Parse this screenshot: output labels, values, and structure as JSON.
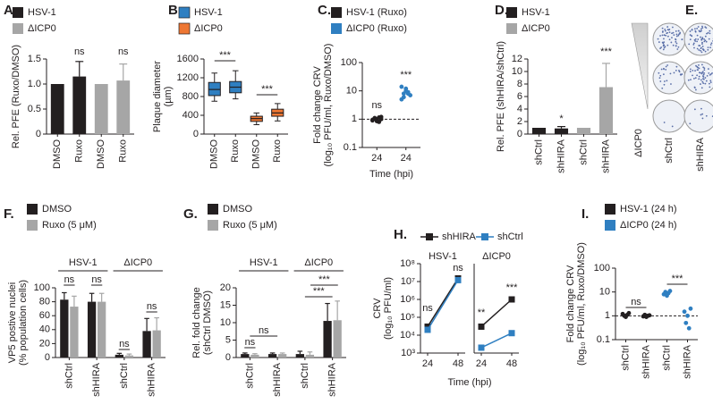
{
  "chart_data": [
    {
      "type": "bar",
      "panel_label": "A.",
      "ylabel": [
        "Rel. PFE (Ruxo/DMSO)"
      ],
      "categories": [
        "DMSO",
        "Ruxo",
        "DMSO",
        "Ruxo"
      ],
      "series": [
        {
          "name": "HSV-1",
          "color": "#231f20",
          "values": [
            1,
            1.15,
            null,
            null
          ],
          "errors": [
            null,
            0.3,
            null,
            null
          ]
        },
        {
          "name": "ΔICP0",
          "color": "#a6a6a6",
          "values": [
            null,
            null,
            1,
            1.07
          ],
          "errors": [
            null,
            null,
            null,
            0.33
          ]
        }
      ],
      "ylim": [
        0,
        1.5
      ],
      "yticks": [
        0,
        0.5,
        {
          "value": 1,
          "label": "1.0"
        },
        1.5
      ],
      "annotations": [
        "ns",
        "ns"
      ]
    },
    {
      "type": "box",
      "panel_label": "B.",
      "ylabel": [
        "Plaque diameter",
        "(µm)"
      ],
      "categories": [
        "DMSO",
        "Ruxo",
        "DMSO",
        "Ruxo"
      ],
      "series": [
        {
          "name": "HSV-1",
          "color": "#2f7fc1",
          "min": [
            700,
            750,
            null,
            null
          ],
          "q1": [
            820,
            880,
            null,
            null
          ],
          "median": [
            950,
            1000,
            null,
            null
          ],
          "q3": [
            1100,
            1120,
            null,
            null
          ],
          "max": [
            1300,
            1350,
            null,
            null
          ]
        },
        {
          "name": "ΔICP0",
          "color": "#ee7733",
          "min": [
            null,
            null,
            200,
            280
          ],
          "q1": [
            null,
            null,
            270,
            380
          ],
          "median": [
            null,
            null,
            330,
            450
          ],
          "q3": [
            null,
            null,
            380,
            530
          ],
          "max": [
            null,
            null,
            450,
            650
          ]
        }
      ],
      "ylim": [
        0,
        1600
      ],
      "yticks": [
        0,
        400,
        800,
        1200,
        1600
      ],
      "annotations": [
        "***",
        "***"
      ]
    },
    {
      "type": "dot",
      "panel_label": "C.",
      "ylabel": [
        "Fold change CRV",
        "(log₁₀ PFU/ml, Ruxo/DMSO)"
      ],
      "xlabel": "Time (hpi)",
      "categories": [
        "24",
        "24"
      ],
      "series": [
        {
          "name": "HSV-1 (Ruxo)",
          "color": "#231f20",
          "values": [
            [
              0.9,
              1.1,
              1.0,
              0.8,
              1.2,
              0.95,
              1.05,
              0.85,
              1.15,
              1.0
            ],
            null
          ]
        },
        {
          "name": "ΔICP0 (Ruxo)",
          "color": "#2f7fc1",
          "values": [
            null,
            [
              5,
              8,
              12,
              9,
              7,
              14,
              6,
              10,
              8
            ]
          ]
        }
      ],
      "log": true,
      "ylim": [
        0.1,
        100
      ],
      "yticks": [
        0.1,
        1,
        10,
        100
      ],
      "reference_line": 1,
      "annotations": [
        "ns",
        "***"
      ]
    },
    {
      "type": "bar",
      "panel_label": "D.",
      "ylabel": [
        "Rel. PFE (shHIRA/shCtrl)"
      ],
      "categories": [
        "shCtrl",
        "shHIRA",
        "shCtrl",
        "shHIRA"
      ],
      "series": [
        {
          "name": "HSV-1",
          "color": "#231f20",
          "values": [
            1,
            0.9,
            null,
            null
          ],
          "errors": [
            null,
            0.3,
            null,
            null
          ]
        },
        {
          "name": "ΔICP0",
          "color": "#a6a6a6",
          "values": [
            null,
            null,
            1,
            7.5
          ],
          "errors": [
            null,
            null,
            null,
            3.8
          ]
        }
      ],
      "ylim": [
        0,
        12
      ],
      "yticks": [
        0,
        2,
        4,
        6,
        8,
        10,
        12
      ],
      "annotations": [
        "*",
        "***"
      ]
    },
    {
      "type": "image",
      "panel_label": "E.",
      "ylabel": [
        "ΔICP0"
      ],
      "categories": [
        "shCtrl",
        "shHIRA"
      ]
    },
    {
      "type": "bar",
      "panel_label": "F.",
      "ylabel": [
        "VP5 postive nuclei",
        "(% population cells)"
      ],
      "categories": [
        "shCtrl",
        "shHIRA",
        "shCtrl",
        "shHIRA"
      ],
      "groups": [
        "HSV-1",
        "ΔICP0"
      ],
      "series": [
        {
          "name": "DMSO",
          "color": "#231f20",
          "values": [
            83,
            80,
            4,
            38
          ],
          "errors": [
            10,
            12,
            2,
            18
          ]
        },
        {
          "name": "Ruxo (5 μM)",
          "color": "#a6a6a6",
          "values": [
            73,
            80,
            3,
            39
          ],
          "errors": [
            15,
            12,
            2,
            18
          ]
        }
      ],
      "ylim": [
        0,
        100
      ],
      "yticks": [
        0,
        20,
        40,
        60,
        80,
        100
      ],
      "annotations": [
        "ns",
        "ns",
        "ns",
        "ns"
      ]
    },
    {
      "type": "bar",
      "panel_label": "G.",
      "ylabel": [
        "Rel. fold change",
        "(shCtrl DMSO)"
      ],
      "categories": [
        "shCtrl",
        "shHIRA",
        "shCtrl",
        "shHIRA"
      ],
      "groups": [
        "HSV-1",
        "ΔICP0"
      ],
      "series": [
        {
          "name": "DMSO",
          "color": "#231f20",
          "values": [
            1,
            1,
            1,
            10.5
          ],
          "errors": [
            0.3,
            0.3,
            0.8,
            5
          ]
        },
        {
          "name": "Ruxo (5 μM)",
          "color": "#a6a6a6",
          "values": [
            0.8,
            1,
            0.8,
            10.7
          ],
          "errors": [
            0.3,
            0.3,
            0.8,
            5.5
          ]
        }
      ],
      "ylim": [
        0,
        20
      ],
      "yticks": [
        0,
        5,
        10,
        15,
        20
      ],
      "annotations": [
        "ns",
        "ns",
        "***",
        "***"
      ]
    },
    {
      "type": "line",
      "panel_label": "H.",
      "subtitle": "HSV-1",
      "ylabel": [
        "CRV",
        "(log₁₀ PFU/ml)"
      ],
      "xlabel": "Time (hpi)",
      "categories": [
        "24",
        "48"
      ],
      "series": [
        {
          "name": "shHIRA",
          "color": "#231f20",
          "values": [
            30000,
            15000000
          ]
        },
        {
          "name": "shCtrl",
          "color": "#2f7fc1",
          "values": [
            20000,
            12000000
          ]
        }
      ],
      "log": true,
      "ylim": [
        1000,
        100000000
      ],
      "yticks": [
        {
          "value": 1000,
          "label": "10³"
        },
        {
          "value": 10000,
          "label": "10⁴"
        },
        {
          "value": 100000,
          "label": "10⁵"
        },
        {
          "value": 1000000,
          "label": "10⁶"
        },
        {
          "value": 10000000,
          "label": "10⁷"
        },
        {
          "value": 100000000,
          "label": "10⁸"
        }
      ],
      "annotations": [
        "ns",
        "ns"
      ]
    },
    {
      "type": "line",
      "subtitle": "ΔICP0",
      "categories": [
        "24",
        "48"
      ],
      "series": [
        {
          "color": "#231f20",
          "values": [
            30000,
            1000000
          ]
        },
        {
          "color": "#2f7fc1",
          "values": [
            2000,
            13000
          ]
        }
      ],
      "log": true,
      "ylim": [
        1000,
        100000000
      ],
      "annotations": [
        "**",
        "***"
      ]
    },
    {
      "type": "dot",
      "panel_label": "I.",
      "ylabel": [
        "Fold change CRV",
        "(log₁₀ PFU/ml, Ruxo/DMSO)"
      ],
      "categories": [
        "shCtrl",
        "shHIRA",
        "shCtrl",
        "shHIRA"
      ],
      "series": [
        {
          "name": "HSV-1 (24 h)",
          "color": "#231f20",
          "values": [
            [
              1.2,
              1.0,
              0.9,
              1.1,
              1.3
            ],
            [
              0.95,
              1.1,
              0.9,
              1.0,
              1.05
            ],
            null,
            null
          ]
        },
        {
          "name": "ΔICP0 (24 h)",
          "color": "#2f7fc1",
          "values": [
            null,
            null,
            [
              8,
              10,
              7,
              9,
              11
            ],
            [
              1.5,
              0.5,
              1.0,
              0.3,
              2.0
            ]
          ]
        }
      ],
      "log": true,
      "ylim": [
        0.1,
        100
      ],
      "yticks": [
        0.1,
        1,
        10,
        100
      ],
      "reference_line": 1,
      "annotations": [
        "ns",
        "***"
      ]
    }
  ]
}
